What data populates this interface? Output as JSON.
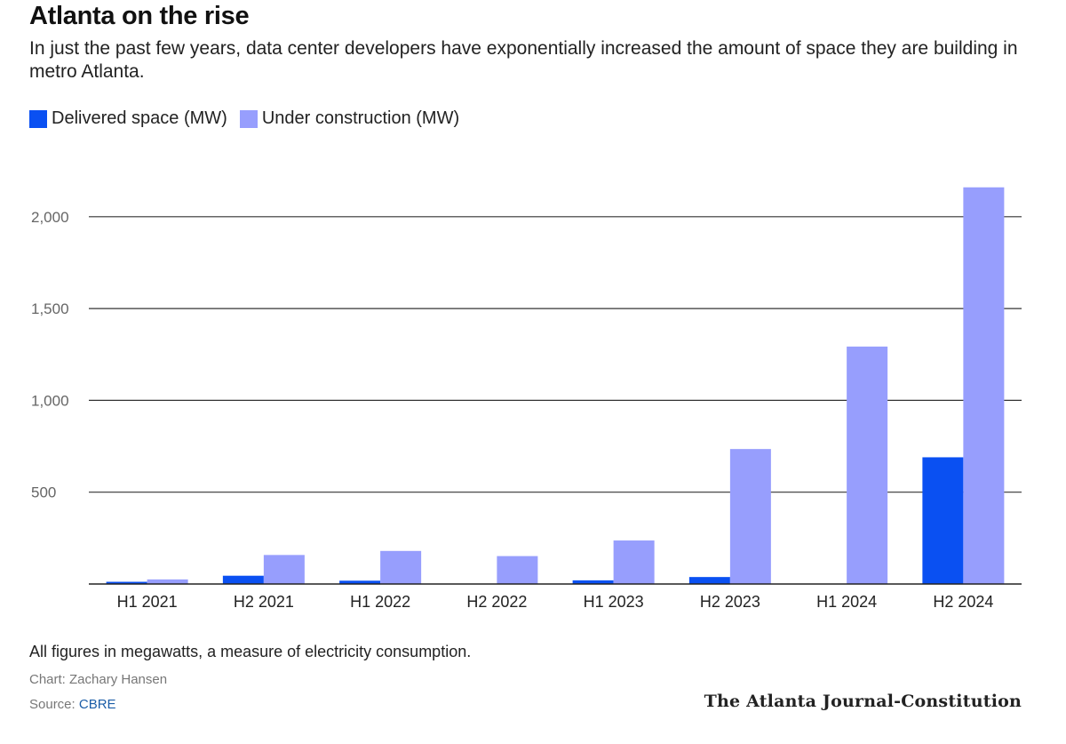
{
  "title": "Atlanta on the rise",
  "subtitle": "In just the past few years, data center developers have exponentially increased the amount of space they are building in metro Atlanta.",
  "note": "All figures in megawatts, a measure of electricity consumption.",
  "credit": "Chart: Zachary Hansen",
  "source_label": "Source:",
  "source_name": "CBRE",
  "publisher": "The Atlanta Journal-Constitution",
  "colors": {
    "delivered": "#0a50f2",
    "under_construction": "#979efd",
    "grid": "#333333",
    "tick_text": "#666666"
  },
  "chart_data": {
    "type": "bar",
    "categories": [
      "H1 2021",
      "H2 2021",
      "H1 2022",
      "H2 2022",
      "H1 2023",
      "H2 2023",
      "H1 2024",
      "H2 2024"
    ],
    "series": [
      {
        "name": "Delivered space (MW)",
        "values": [
          12,
          45,
          18,
          0,
          20,
          38,
          0,
          690
        ]
      },
      {
        "name": "Under construction (MW)",
        "values": [
          25,
          158,
          180,
          152,
          237,
          735,
          1293,
          2160
        ]
      }
    ],
    "yticks": [
      500,
      1000,
      1500,
      2000
    ],
    "ytick_labels": [
      "500",
      "1,000",
      "1,500",
      "2,000"
    ],
    "ylim": [
      0,
      2200
    ],
    "grid": true,
    "legend_position": "top-left",
    "xlabel": "",
    "ylabel": ""
  }
}
